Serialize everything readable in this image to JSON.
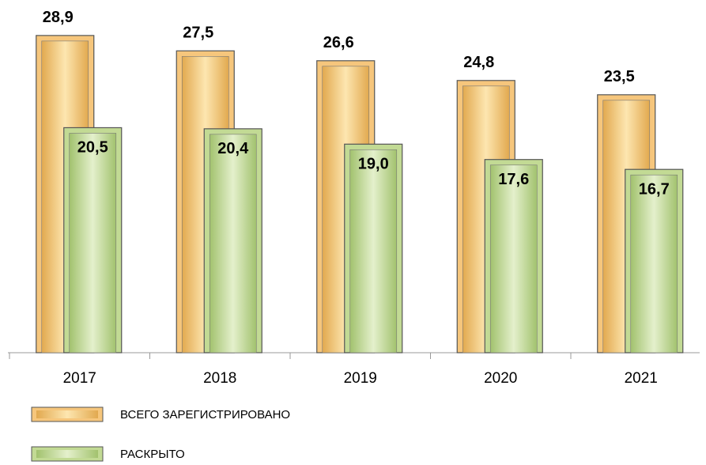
{
  "chart_data": {
    "type": "bar",
    "categories": [
      "2017",
      "2018",
      "2019",
      "2020",
      "2021"
    ],
    "series": [
      {
        "name": "ВСЕГО ЗАРЕГИСТРИРОВАНО",
        "color": "#f6c67c",
        "values": [
          28.9,
          27.5,
          26.6,
          24.8,
          23.5
        ],
        "value_labels": [
          "28,9",
          "27,5",
          "26,6",
          "24,8",
          "23,5"
        ]
      },
      {
        "name": "РАСКРЫТО",
        "color": "#c2da94",
        "values": [
          20.5,
          20.4,
          19.0,
          17.6,
          16.7
        ],
        "value_labels": [
          "20,5",
          "20,4",
          "19,0",
          "17,6",
          "16,7"
        ]
      }
    ],
    "legend": "bottom-left"
  }
}
